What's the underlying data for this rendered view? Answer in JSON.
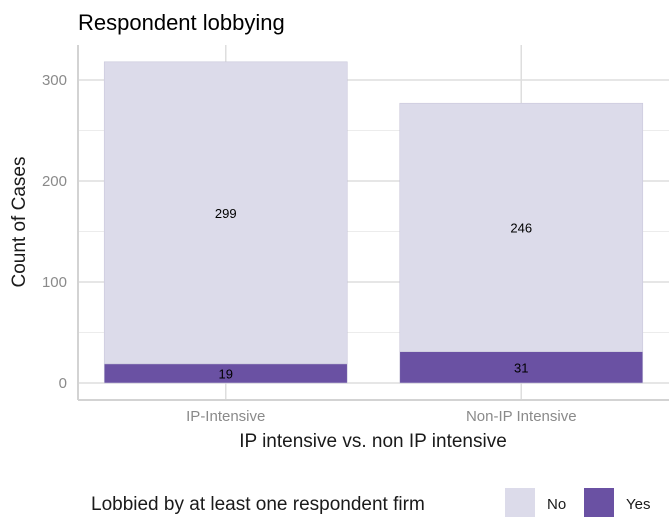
{
  "chart_data": {
    "type": "bar",
    "stacked": true,
    "title": "Respondent lobbying",
    "xlabel": "IP intensive vs. non IP intensive",
    "ylabel": "Count of Cases",
    "categories": [
      "IP-Intensive",
      "Non-IP Intensive"
    ],
    "series": [
      {
        "name": "No",
        "values": [
          299,
          246
        ],
        "color": "#dcdbea"
      },
      {
        "name": "Yes",
        "values": [
          19,
          31
        ],
        "color": "#6a51a3"
      }
    ],
    "ylim": [
      0,
      330
    ],
    "yticks": [
      0,
      100,
      200,
      300
    ],
    "grid": true,
    "legend": {
      "title": "Lobbied by at least one respondent firm",
      "position": "bottom"
    }
  }
}
